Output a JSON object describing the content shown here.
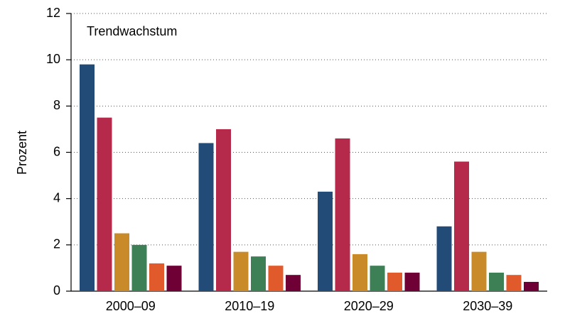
{
  "chart_data": {
    "type": "bar",
    "annotation": "Trendwachstum",
    "y_label": "Prozent",
    "categories": [
      "2000–09",
      "2010–19",
      "2020–29",
      "2030–39"
    ],
    "series": [
      {
        "color": "#234b78",
        "values": [
          9.8,
          6.4,
          4.3,
          2.8
        ]
      },
      {
        "color": "#b5294b",
        "values": [
          7.5,
          7.0,
          6.6,
          5.6
        ]
      },
      {
        "color": "#c98b2a",
        "values": [
          2.5,
          1.7,
          1.6,
          1.7
        ]
      },
      {
        "color": "#3e8056",
        "values": [
          2.0,
          1.5,
          1.1,
          0.8
        ]
      },
      {
        "color": "#e05a2b",
        "values": [
          1.2,
          1.1,
          0.8,
          0.7
        ]
      },
      {
        "color": "#6e0036",
        "values": [
          1.1,
          0.7,
          0.8,
          0.4
        ]
      }
    ],
    "ylim": [
      0,
      12
    ],
    "yticks": [
      0,
      2,
      4,
      6,
      8,
      10,
      12
    ],
    "grid": true
  }
}
